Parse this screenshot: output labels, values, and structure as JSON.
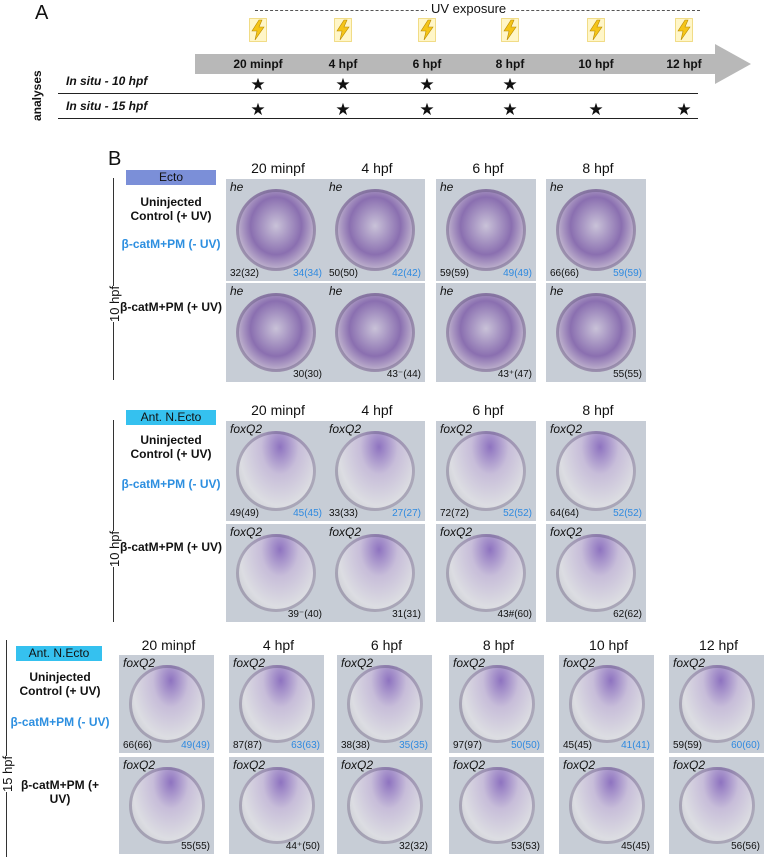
{
  "panel_a": {
    "letter": "A",
    "uv_label": "UV exposure",
    "analyses_label": "analyses",
    "timepoints": [
      "20 minpf",
      "4 hpf",
      "6 hpf",
      "8 hpf",
      "10 hpf",
      "12 hpf"
    ],
    "rows": [
      {
        "label": "In situ  - 10 hpf",
        "stars": [
          true,
          true,
          true,
          true,
          false,
          false
        ]
      },
      {
        "label": "In situ  - 15 hpf",
        "stars": [
          true,
          true,
          true,
          true,
          true,
          true
        ]
      }
    ],
    "star_glyph": "★",
    "bolt_color": "#f5c518"
  },
  "panel_b": {
    "letter": "B",
    "block1": {
      "tag": "Ecto",
      "side_label": "10 hpf",
      "columns": [
        "20 minpf",
        "4 hpf",
        "6 hpf",
        "8 hpf"
      ],
      "cond_top": "Uninjected Control (+ UV)",
      "cond_mid": "β-catM+PM (- UV)",
      "cond_bot": "β-catM+PM (+ UV)",
      "gene": "he",
      "top_counts": [
        [
          "32(32)",
          "34(34)"
        ],
        [
          "50(50)",
          "42(42)"
        ],
        [
          "59(59)",
          "49(49)"
        ],
        [
          "66(66)",
          "59(59)"
        ]
      ],
      "bot_counts": [
        "30(30)",
        "43⁻(44)",
        "43⁺(47)",
        "55(55)"
      ]
    },
    "block2": {
      "tag": "Ant. N.Ecto",
      "side_label": "10 hpf",
      "columns": [
        "20 minpf",
        "4 hpf",
        "6 hpf",
        "8 hpf"
      ],
      "cond_top": "Uninjected Control (+ UV)",
      "cond_mid": "β-catM+PM (- UV)",
      "cond_bot": "β-catM+PM (+ UV)",
      "gene": "foxQ2",
      "top_counts": [
        [
          "49(49)",
          "45(45)"
        ],
        [
          "33(33)",
          "27(27)"
        ],
        [
          "72(72)",
          "52(52)"
        ],
        [
          "64(64)",
          "52(52)"
        ]
      ],
      "bot_counts": [
        "39⁻(40)",
        "31(31)",
        "43#(60)",
        "62(62)"
      ]
    },
    "block3": {
      "tag": "Ant. N.Ecto",
      "side_label": "15 hpf",
      "columns": [
        "20 minpf",
        "4 hpf",
        "6 hpf",
        "8 hpf",
        "10 hpf",
        "12 hpf"
      ],
      "cond_top": "Uninjected Control (+ UV)",
      "cond_mid": "β-catM+PM (- UV)",
      "cond_bot": "β-catM+PM (+ UV)",
      "gene": "foxQ2",
      "top_counts": [
        [
          "66(66)",
          "49(49)"
        ],
        [
          "87(87)",
          "63(63)"
        ],
        [
          "38(38)",
          "35(35)"
        ],
        [
          "97(97)",
          "50(50)"
        ],
        [
          "45(45)",
          "41(41)"
        ],
        [
          "59(59)",
          "60(60)"
        ]
      ],
      "bot_counts": [
        "55(55)",
        "44⁺(50)",
        "32(32)",
        "53(53)",
        "45(45)",
        "56(56)"
      ]
    }
  }
}
